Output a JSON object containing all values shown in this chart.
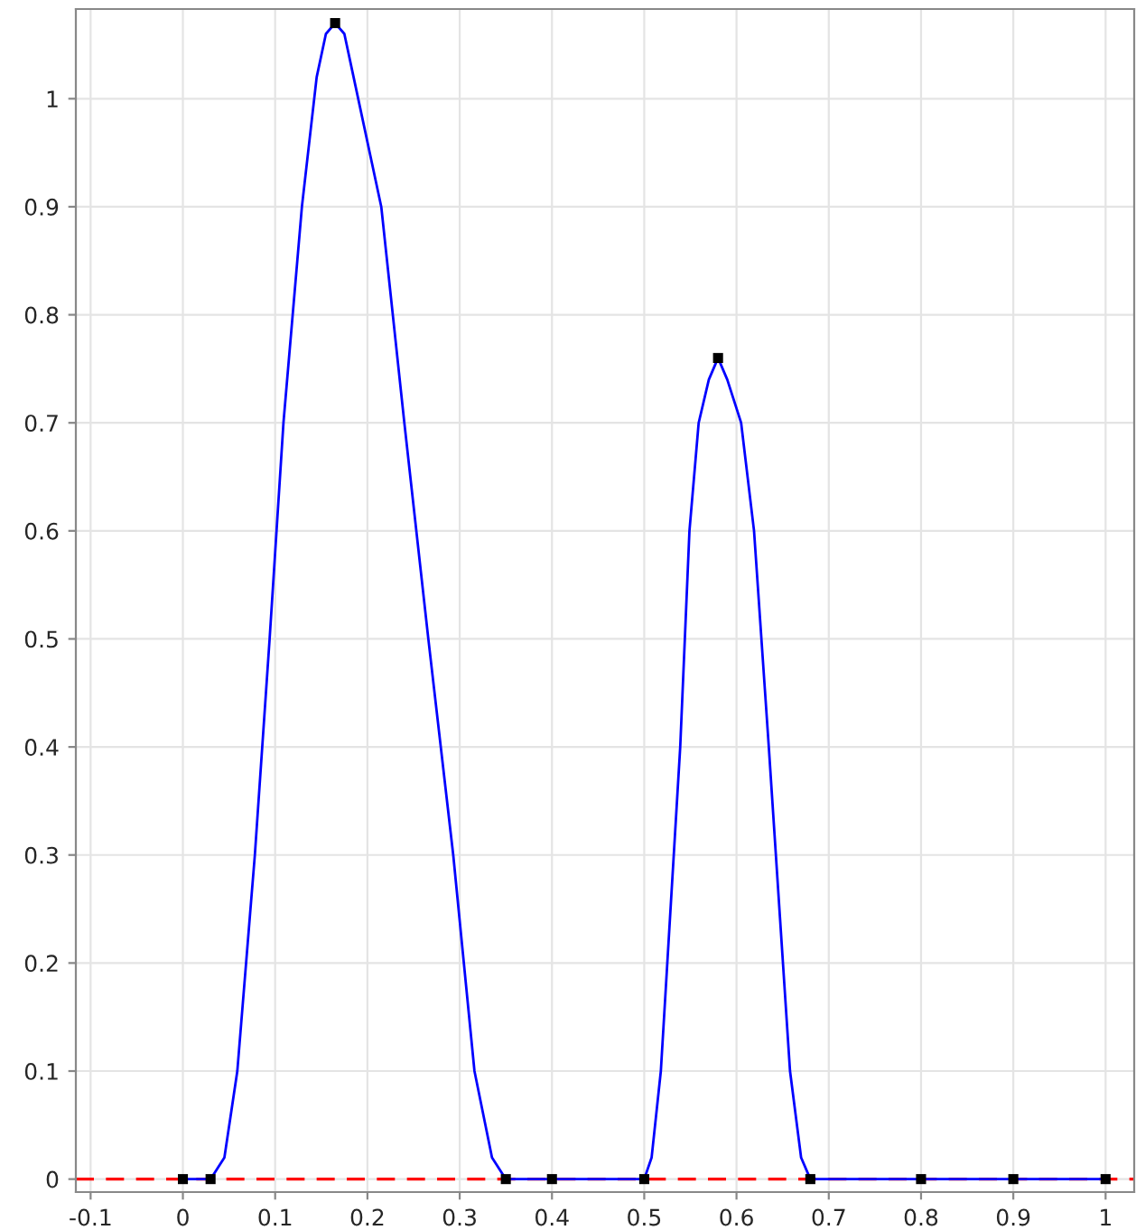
{
  "chart_data": {
    "type": "line",
    "series": [
      {
        "color": "#0000ff",
        "marker": "none",
        "x": [
          0,
          0.03,
          0.045,
          0.059,
          0.078,
          0.094,
          0.109,
          0.129,
          0.145,
          0.155,
          0.165,
          0.175,
          0.185,
          0.215,
          0.24,
          0.266,
          0.293,
          0.316,
          0.335,
          0.35,
          0.4,
          0.5,
          0.508,
          0.518,
          0.539,
          0.549,
          0.559,
          0.57,
          0.58,
          0.59,
          0.605,
          0.619,
          0.635,
          0.658,
          0.67,
          0.68,
          0.8,
          0.9,
          1
        ],
        "values": [
          0,
          0,
          0.02,
          0.1,
          0.3,
          0.5,
          0.7,
          0.9,
          1.02,
          1.06,
          1.07,
          1.06,
          1.02,
          0.9,
          0.7,
          0.5,
          0.3,
          0.1,
          0.02,
          0,
          0,
          0,
          0.02,
          0.1,
          0.4,
          0.6,
          0.7,
          0.74,
          0.76,
          0.74,
          0.7,
          0.6,
          0.4,
          0.1,
          0.02,
          0,
          0,
          0,
          0
        ]
      },
      {
        "type": "scatter",
        "color": "#000000",
        "marker": "square",
        "x": [
          0,
          0.03,
          0.165,
          0.35,
          0.4,
          0.5,
          0.58,
          0.68,
          0.8,
          0.9,
          1
        ],
        "values": [
          0,
          0,
          1.07,
          0,
          0,
          0,
          0.76,
          0,
          0,
          0,
          0
        ]
      }
    ],
    "ref_lines": [
      {
        "axis": "y",
        "value": 0,
        "color": "#ff0000",
        "line_style": "dashed"
      }
    ],
    "xlim": [
      -0.116,
      1.031
    ],
    "ylim": [
      -0.012,
      1.083
    ],
    "xticks": [
      -0.1,
      0,
      0.1,
      0.2,
      0.3,
      0.4,
      0.5,
      0.6,
      0.7,
      0.8,
      0.9,
      1
    ],
    "yticks": [
      0,
      0.1,
      0.2,
      0.3,
      0.4,
      0.5,
      0.6,
      0.7,
      0.8,
      0.9,
      1
    ],
    "grid": true
  }
}
